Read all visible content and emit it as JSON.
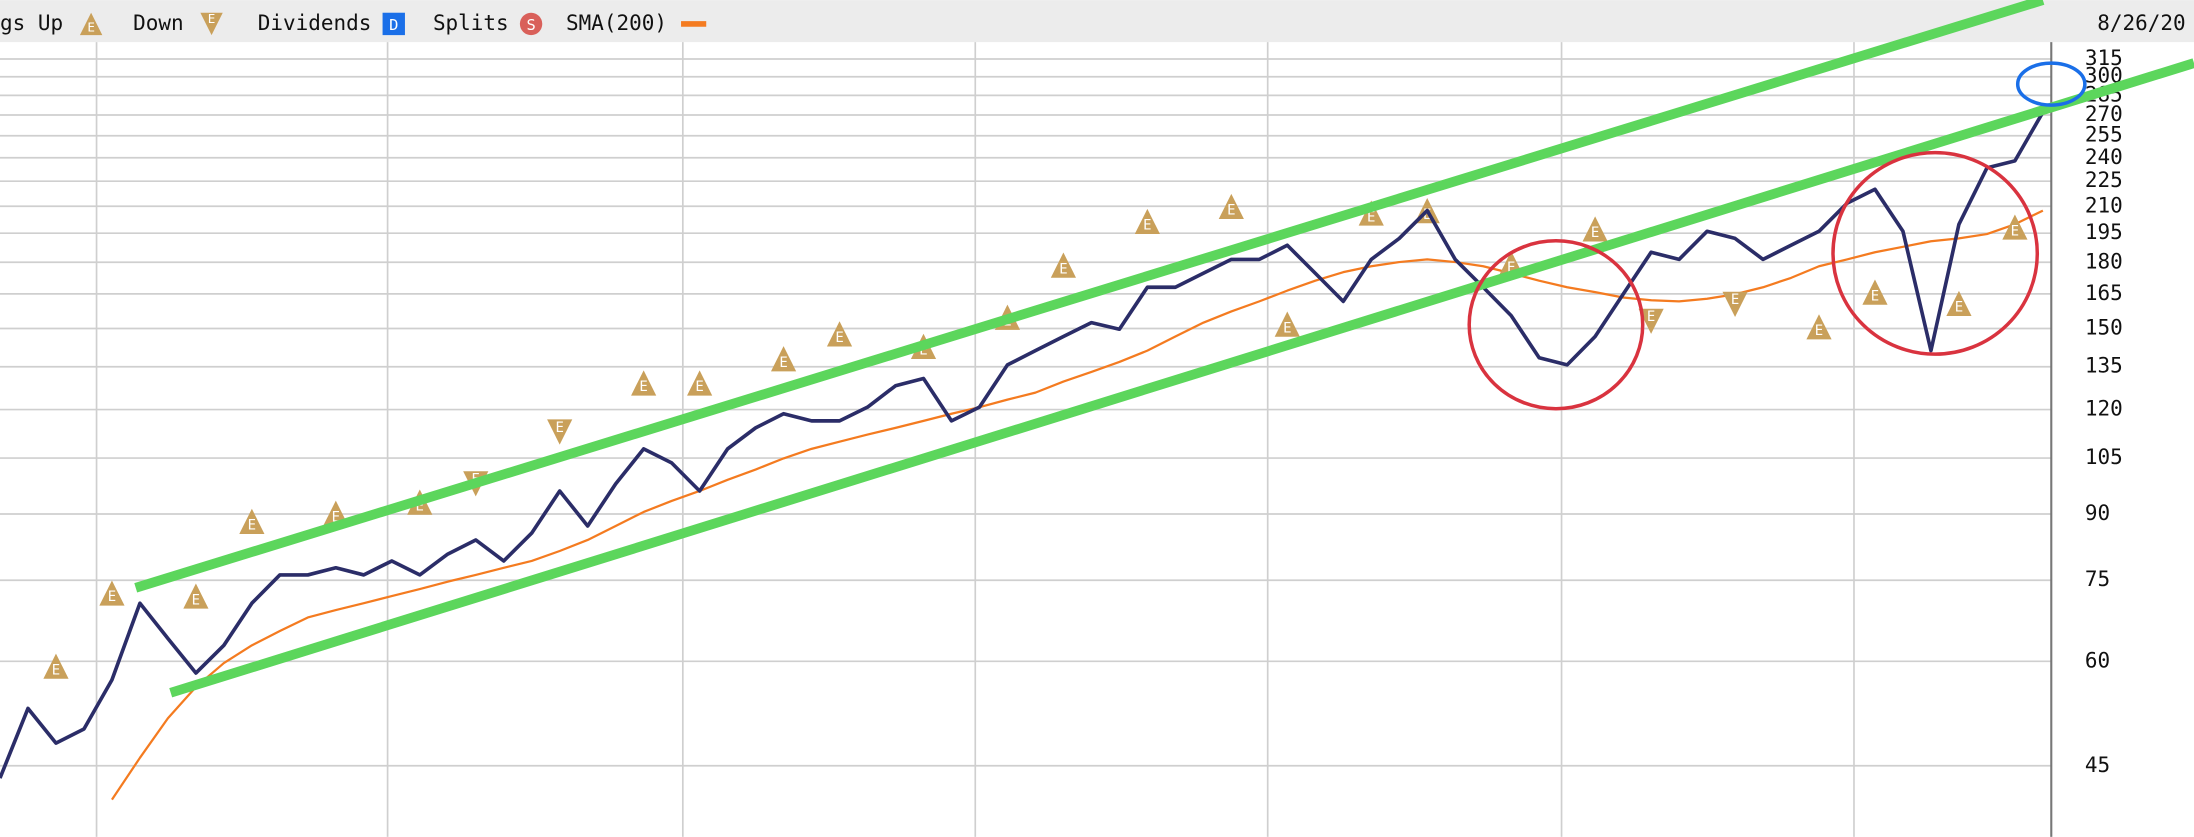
{
  "chart_data": {
    "type": "line",
    "log_scale": true,
    "grid": true,
    "date_label": "8/26/20",
    "categories": [
      null,
      null,
      null,
      null,
      null,
      null,
      null,
      null,
      null,
      null,
      null,
      null,
      null,
      null,
      null,
      null,
      null,
      null,
      null,
      null,
      null,
      null,
      null,
      null,
      null,
      null,
      null,
      null,
      null,
      null,
      null,
      null,
      null,
      null,
      null,
      null,
      null,
      null,
      null,
      null,
      null,
      null,
      null,
      null,
      null,
      null,
      null,
      null,
      null,
      null,
      null,
      null,
      null,
      null,
      null,
      null,
      null,
      null,
      null,
      null,
      null,
      null,
      null,
      null,
      null,
      null,
      null,
      null,
      null,
      null,
      null,
      null,
      null,
      null
    ],
    "values": [
      43.5,
      52.7,
      47.9,
      49.8,
      57.0,
      70.4,
      63.9,
      58.1,
      62.7,
      70.4,
      76.1,
      76.1,
      77.6,
      76.1,
      79.1,
      76.1,
      80.6,
      83.8,
      79.1,
      85.4,
      95.9,
      87.1,
      97.8,
      107.7,
      103.6,
      95.9,
      107.7,
      114.1,
      118.6,
      116.3,
      116.3,
      120.8,
      128.1,
      130.7,
      116.3,
      120.8,
      135.7,
      141.1,
      146.7,
      152.4,
      149.7,
      168.0,
      168.0,
      174.6,
      181.4,
      181.4,
      188.6,
      174.6,
      161.6,
      181.4,
      192.2,
      207.5,
      181.4,
      168.0,
      155.4,
      138.4,
      135.7,
      146.7,
      164.8,
      185.0,
      181.4,
      196.0,
      192.2,
      181.4,
      188.6,
      196.0,
      211.7,
      220.0,
      196.0,
      141.1,
      199.8,
      233.4,
      237.9,
      272.1
    ],
    "color": "#2b2d68",
    "series": [
      {
        "name": "SMA(200)",
        "color": "#f47b20",
        "values": [
          null,
          null,
          null,
          null,
          41.0,
          46.0,
          51.3,
          55.9,
          59.7,
          62.7,
          65.2,
          67.7,
          69.1,
          70.4,
          71.8,
          73.2,
          74.7,
          76.1,
          77.6,
          79.1,
          81.3,
          83.8,
          87.1,
          90.5,
          93.3,
          95.9,
          98.9,
          101.7,
          104.9,
          107.7,
          109.8,
          112.0,
          114.1,
          116.3,
          118.6,
          120.8,
          123.3,
          125.7,
          129.6,
          133.1,
          136.8,
          141.1,
          146.7,
          152.4,
          157.2,
          161.6,
          166.5,
          171.1,
          175.2,
          178.0,
          180.1,
          181.4,
          180.1,
          178.0,
          174.6,
          171.1,
          168.0,
          165.8,
          163.4,
          162.1,
          161.6,
          162.8,
          164.8,
          168.0,
          172.4,
          178.0,
          181.4,
          185.0,
          187.8,
          190.7,
          192.2,
          194.5,
          199.8,
          207.5
        ]
      },
      {
        "name": "gs Up",
        "color": "#c9a05a",
        "marker": "up",
        "label": "E",
        "values": [
          null,
          null,
          59.2,
          null,
          72.4,
          null,
          null,
          71.8,
          null,
          88.2,
          null,
          null,
          90.2,
          null,
          null,
          93.0,
          null,
          null,
          null,
          null,
          null,
          null,
          null,
          129.1,
          null,
          129.1,
          null,
          null,
          138.0,
          null,
          147.8,
          null,
          null,
          142.8,
          null,
          null,
          154.7,
          null,
          178.6,
          null,
          null,
          201.4,
          null,
          null,
          209.9,
          null,
          151.8,
          null,
          null,
          206.1,
          null,
          207.5,
          null,
          null,
          179.3,
          null,
          null,
          197.3,
          null,
          null,
          null,
          null,
          null,
          null,
          null,
          150.7,
          null,
          165.8,
          null,
          null,
          160.7,
          null,
          198.3,
          null
        ]
      },
      {
        "name": "Down",
        "color": "#c9a05a",
        "marker": "down",
        "label": "E",
        "values": [
          null,
          null,
          null,
          null,
          null,
          null,
          null,
          null,
          null,
          null,
          null,
          null,
          null,
          null,
          null,
          null,
          null,
          97.8,
          null,
          null,
          112.8,
          null,
          null,
          null,
          null,
          null,
          null,
          null,
          null,
          null,
          null,
          null,
          null,
          null,
          null,
          null,
          null,
          null,
          null,
          null,
          null,
          null,
          null,
          null,
          null,
          null,
          null,
          null,
          null,
          null,
          null,
          null,
          null,
          null,
          null,
          null,
          null,
          null,
          null,
          153.0,
          null,
          null,
          160.3,
          null,
          null,
          null,
          null,
          null,
          null,
          null,
          null,
          null,
          null,
          null
        ]
      }
    ],
    "legend_extra": [
      {
        "name": "Dividends",
        "icon": "D",
        "color": "#1a6fe8"
      },
      {
        "name": "Splits",
        "icon": "S",
        "color": "#d9605a"
      }
    ],
    "ylim": [
      37,
      330
    ],
    "yticks": [
      45,
      60,
      75,
      90,
      105,
      120,
      135,
      150,
      165,
      180,
      195,
      210,
      225,
      240,
      255,
      270,
      285,
      300,
      315
    ]
  }
}
